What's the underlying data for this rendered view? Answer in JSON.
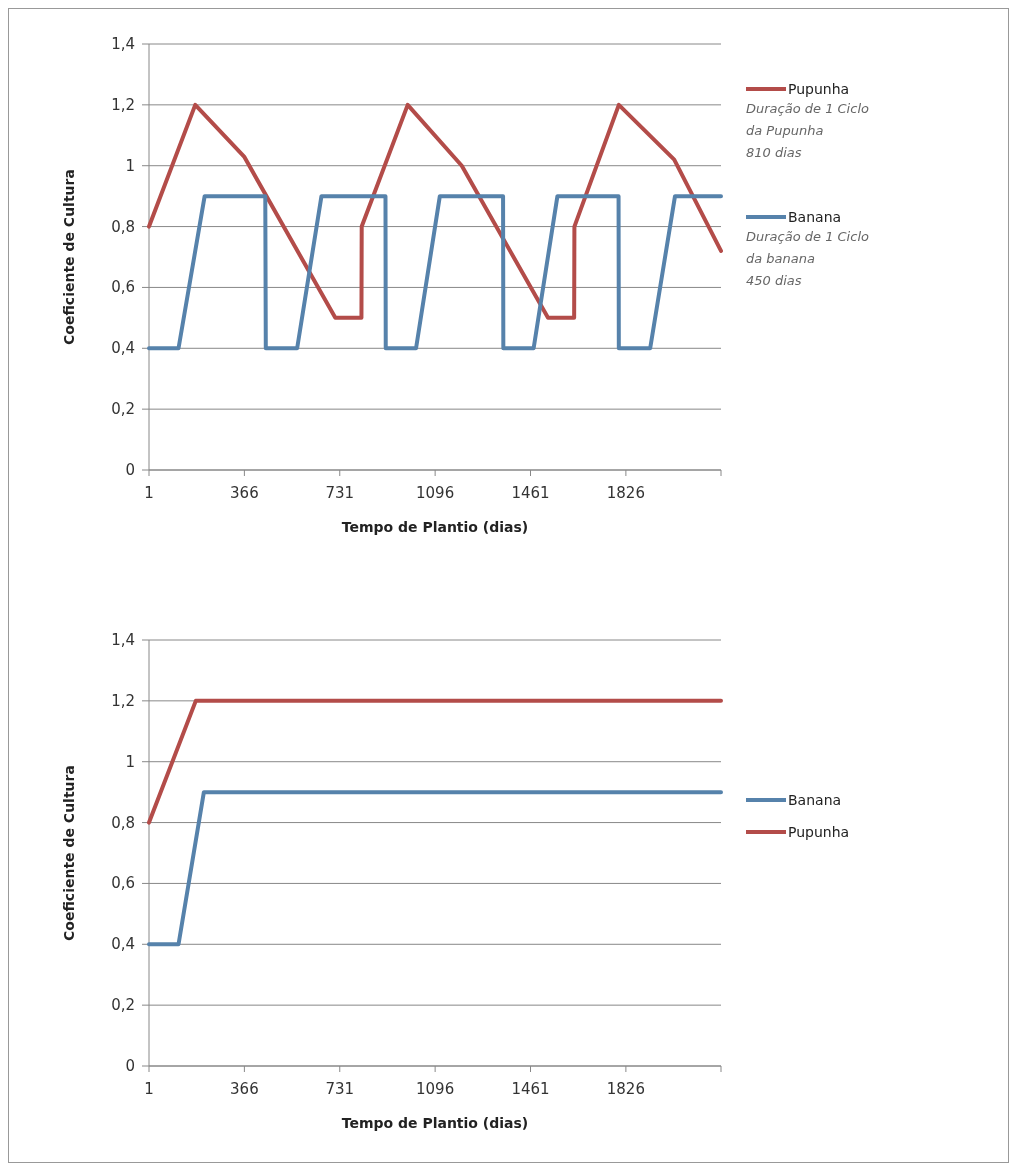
{
  "chart_data": [
    {
      "type": "line",
      "xlabel": "Tempo de Plantio  (dias)",
      "ylabel": "Coeficiente de Cultura",
      "xlim": [
        1,
        2190
      ],
      "xticks": [
        1,
        366,
        731,
        1096,
        1461,
        1826,
        {
          "value": 2190,
          "label": null
        }
      ],
      "ylim": [
        0,
        1.4
      ],
      "yticks": [
        {
          "value": 0,
          "label": "0"
        },
        {
          "value": 0.2,
          "label": "0,2"
        },
        {
          "value": 0.4,
          "label": "0,4"
        },
        {
          "value": 0.6,
          "label": "0,6"
        },
        {
          "value": 0.8,
          "label": "0,8"
        },
        {
          "value": 1,
          "label": "1"
        },
        {
          "value": 1.2,
          "label": "1,2"
        },
        {
          "value": 1.4,
          "label": "1,4"
        }
      ],
      "grid": "y",
      "legend": "right",
      "marker": "none",
      "series": [
        {
          "name": "Pupunha",
          "color": "#b34c49",
          "x": [
            1,
            178,
            365,
            714,
            814,
            815,
            991,
            1198,
            1528,
            1628,
            1629,
            1799,
            2011,
            2190
          ],
          "values": [
            0.8,
            1.2,
            1.03,
            0.5,
            0.5,
            0.8,
            1.2,
            1.0,
            0.5,
            0.5,
            0.8,
            1.2,
            1.02,
            0.72
          ]
        },
        {
          "name": "Banana",
          "color": "#5682ab",
          "x": [
            1,
            114,
            214,
            446,
            448,
            568,
            661,
            906,
            907,
            1023,
            1114,
            1356,
            1357,
            1473,
            1564,
            1798,
            1799,
            1919,
            2014,
            2190
          ],
          "values": [
            0.4,
            0.4,
            0.9,
            0.9,
            0.4,
            0.4,
            0.9,
            0.9,
            0.4,
            0.4,
            0.9,
            0.9,
            0.4,
            0.4,
            0.9,
            0.9,
            0.4,
            0.4,
            0.9,
            0.9
          ]
        }
      ],
      "annotations": [
        "Duração de 1 Ciclo\nda Pupunha\n810 dias",
        "Duração de 1 Ciclo\nda banana\n450 dias"
      ]
    },
    {
      "type": "line",
      "xlabel": "Tempo de Plantio  (dias)",
      "ylabel": "Coeficiente de Cultura",
      "xlim": [
        1,
        2190
      ],
      "xticks": [
        1,
        366,
        731,
        1096,
        1461,
        1826,
        {
          "value": 2190,
          "label": null
        }
      ],
      "ylim": [
        0,
        1.4
      ],
      "yticks": [
        {
          "value": 0,
          "label": "0"
        },
        {
          "value": 0.2,
          "label": "0,2"
        },
        {
          "value": 0.4,
          "label": "0,4"
        },
        {
          "value": 0.6,
          "label": "0,6"
        },
        {
          "value": 0.8,
          "label": "0,8"
        },
        {
          "value": 1,
          "label": "1"
        },
        {
          "value": 1.2,
          "label": "1,2"
        },
        {
          "value": 1.4,
          "label": "1,4"
        }
      ],
      "grid": "y",
      "legend": "right",
      "marker": "none",
      "series": [
        {
          "name": "Banana",
          "color": "#5682ab",
          "x": [
            1,
            114,
            211,
            2190
          ],
          "values": [
            0.4,
            0.4,
            0.9,
            0.9
          ]
        },
        {
          "name": "Pupunha",
          "color": "#b34c49",
          "x": [
            1,
            180,
            2190
          ],
          "values": [
            0.8,
            1.2,
            1.2
          ]
        }
      ]
    }
  ]
}
